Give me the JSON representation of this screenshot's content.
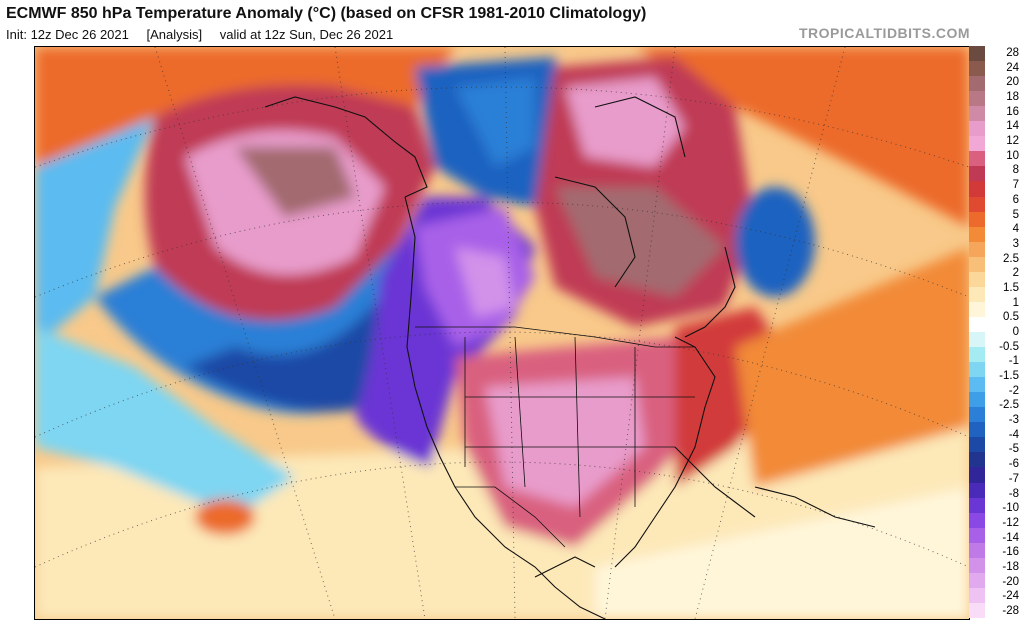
{
  "header": {
    "title": "ECMWF 850 hPa Temperature Anomaly (°C) (based on CFSR 1981-2010 Climatology)",
    "init": "Init: 12z Dec 26 2021",
    "analysis": "[Analysis]",
    "valid": "valid at 12z Sun, Dec 26 2021",
    "credit": "TROPICALTIDBITS.COM"
  },
  "colorbar": {
    "labels": [
      "28",
      "24",
      "20",
      "18",
      "16",
      "14",
      "12",
      "10",
      "8",
      "7",
      "6",
      "5",
      "4",
      "3",
      "2.5",
      "2",
      "1.5",
      "1",
      "0.5",
      "0",
      "-0.5",
      "-1",
      "-1.5",
      "-2",
      "-2.5",
      "-3",
      "-4",
      "-5",
      "-6",
      "-7",
      "-8",
      "-10",
      "-12",
      "-14",
      "-16",
      "-18",
      "-20",
      "-24",
      "-28"
    ],
    "colors": [
      "#6b4a3f",
      "#8a5a4e",
      "#a36a70",
      "#b87886",
      "#cf8aa6",
      "#e89ccb",
      "#f2a8d6",
      "#d9607f",
      "#c03a55",
      "#d23a3a",
      "#e04a30",
      "#ec6a2c",
      "#f28a38",
      "#f6a65a",
      "#f8bf78",
      "#fbd79a",
      "#fde8b8",
      "#fff6da",
      "#ffffff",
      "#d8f6f8",
      "#a4ecf2",
      "#7ed6f2",
      "#5cbbf0",
      "#3f9ee8",
      "#2b7fd6",
      "#1f62c0",
      "#1c48a6",
      "#203490",
      "#30269a",
      "#4a2ab8",
      "#6a36d4",
      "#8a48e4",
      "#a860e8",
      "#c07ae8",
      "#d292ea",
      "#e2aaee",
      "#eec2f2",
      "#f8dcf8"
    ]
  },
  "map": {
    "region": "North America and North Pacific/Atlantic",
    "variable": "850 hPa temperature anomaly"
  }
}
